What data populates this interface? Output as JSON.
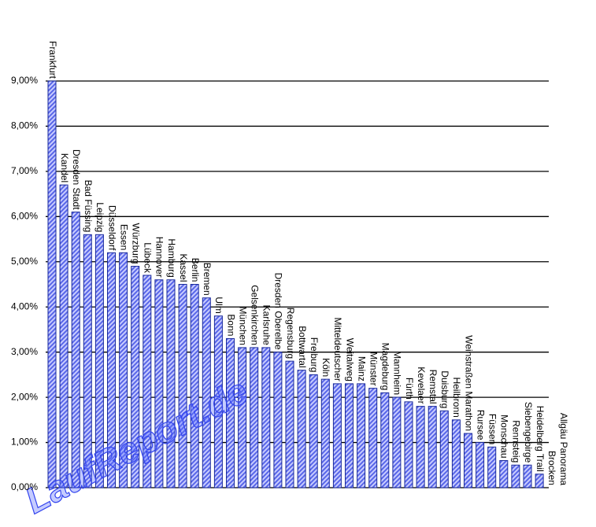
{
  "chart_data": {
    "type": "bar",
    "categories": [
      "Frankfurt",
      "Kandel",
      "Dresden Stadt",
      "Bad Füssing",
      "Leipzig",
      "Düsseldorf",
      "Essen",
      "Würzburg",
      "Lübeck",
      "Hannover",
      "Hamburg",
      "Kassel",
      "Berlin",
      "Bremen",
      "Ulm",
      "Bonn",
      "München",
      "Gelsenkirchen",
      "Karlsruhe",
      "Dresden Oberelbe",
      "Regensburg",
      "Bottwartal",
      "Freiburg",
      "Köln",
      "Mitteldeutscher",
      "Weitalweg",
      "Mainz",
      "Münster",
      "Magdeburg",
      "Mannheim",
      "Fürth",
      "Kevelaer",
      "Remstal",
      "Duisburg",
      "Heilbronn",
      "Weinstraßen Marathon",
      "Rursee",
      "Füssen",
      "Monschau",
      "Rennsteig",
      "Siebengebirge",
      "Heidelberg Trail",
      "Brocken",
      "Allgäu Panorama"
    ],
    "values": [
      9.0,
      6.7,
      6.1,
      5.6,
      5.6,
      5.2,
      5.2,
      4.9,
      4.7,
      4.6,
      4.6,
      4.5,
      4.5,
      4.2,
      3.8,
      3.3,
      3.1,
      3.1,
      3.1,
      3.0,
      2.8,
      2.6,
      2.5,
      2.4,
      2.3,
      2.3,
      2.3,
      2.2,
      2.1,
      2.0,
      1.9,
      1.8,
      1.8,
      1.7,
      1.5,
      1.2,
      1.0,
      0.9,
      0.6,
      0.5,
      0.5,
      0.3,
      0,
      0
    ],
    "color": "#6b7bf0",
    "ylim": [
      0,
      9
    ],
    "yticks": [
      {
        "value": 0,
        "label": "0,00%"
      },
      {
        "value": 1,
        "label": "1,00%"
      },
      {
        "value": 2,
        "label": "2,00%"
      },
      {
        "value": 3,
        "label": "3,00%"
      },
      {
        "value": 4,
        "label": "4,00%"
      },
      {
        "value": 5,
        "label": "5,00%"
      },
      {
        "value": 6,
        "label": "6,00%"
      },
      {
        "value": 7,
        "label": "7,00%"
      },
      {
        "value": 8,
        "label": "8,00%"
      },
      {
        "value": 9,
        "label": "9,00%"
      }
    ],
    "grid": true
  },
  "watermark": "LaufReport.de"
}
